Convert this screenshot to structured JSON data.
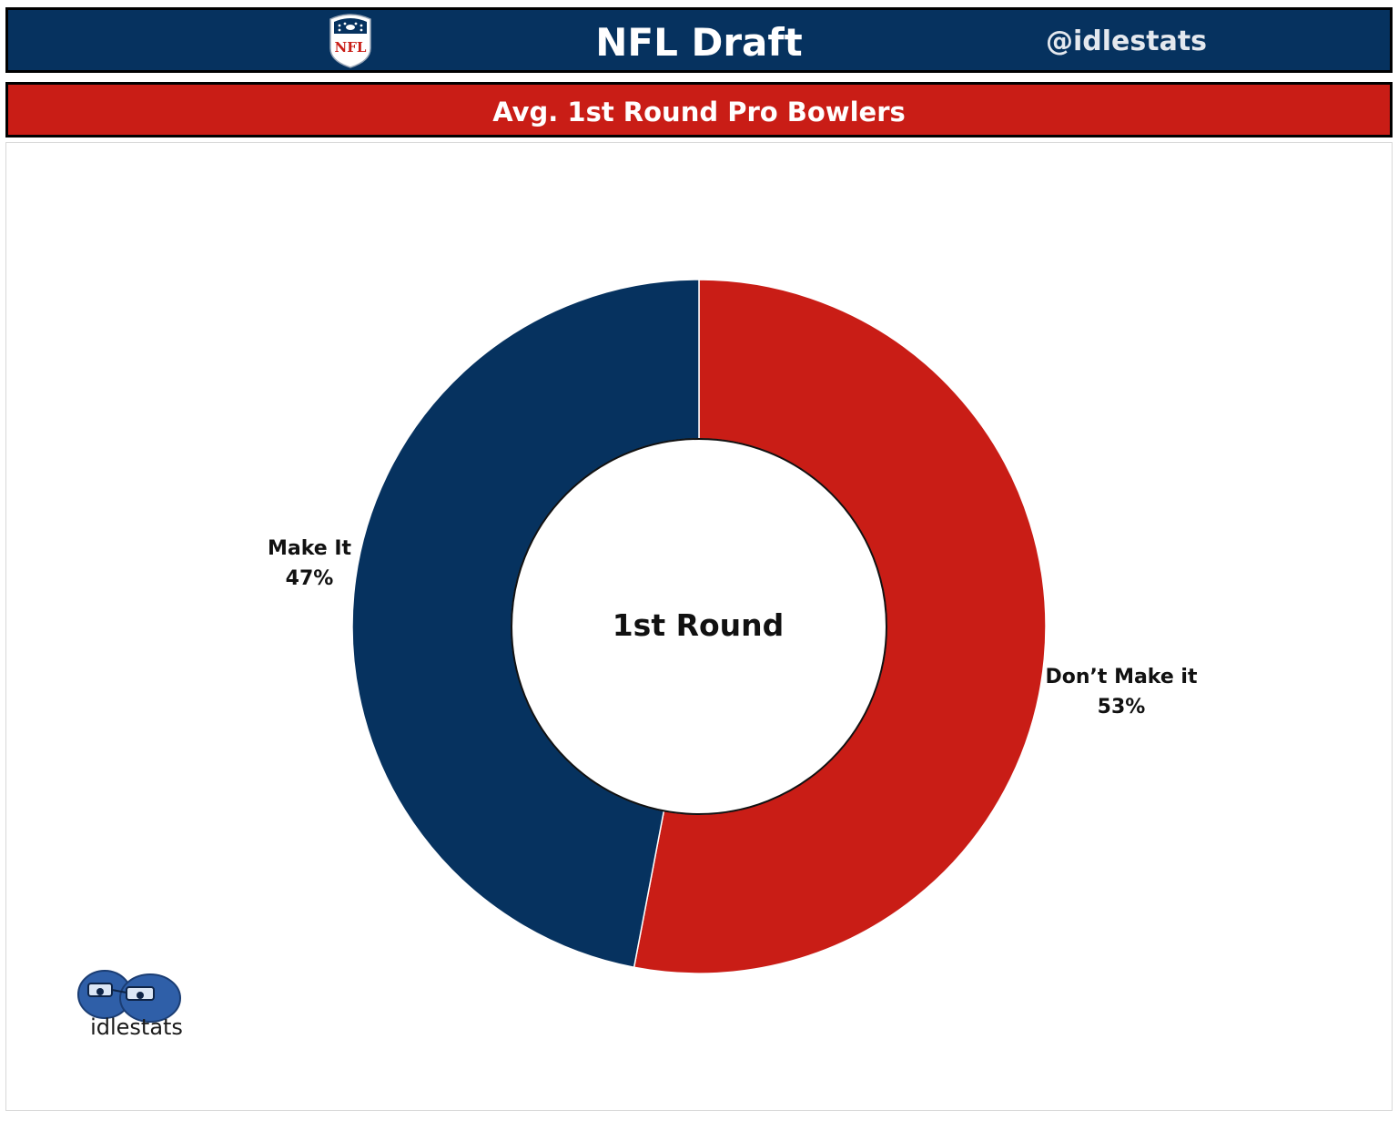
{
  "header": {
    "title": "NFL Draft",
    "handle": "@idlestats",
    "logo_icon": "nfl-shield-icon"
  },
  "subtitle": "Avg. 1st Round Pro Bowlers",
  "colors": {
    "navy": "#06325f",
    "red": "#c91d16"
  },
  "chart_data": {
    "type": "pie",
    "donut": true,
    "center_label": "1st Round",
    "slices": [
      {
        "label": "Don’t Make it",
        "value": 53,
        "display": "53%",
        "color": "#c91d16"
      },
      {
        "label": "Make It",
        "value": 47,
        "display": "47%",
        "color": "#06325f"
      }
    ]
  },
  "brand": {
    "name": "idlestats",
    "logo_icon": "idlestats-logo-icon"
  }
}
